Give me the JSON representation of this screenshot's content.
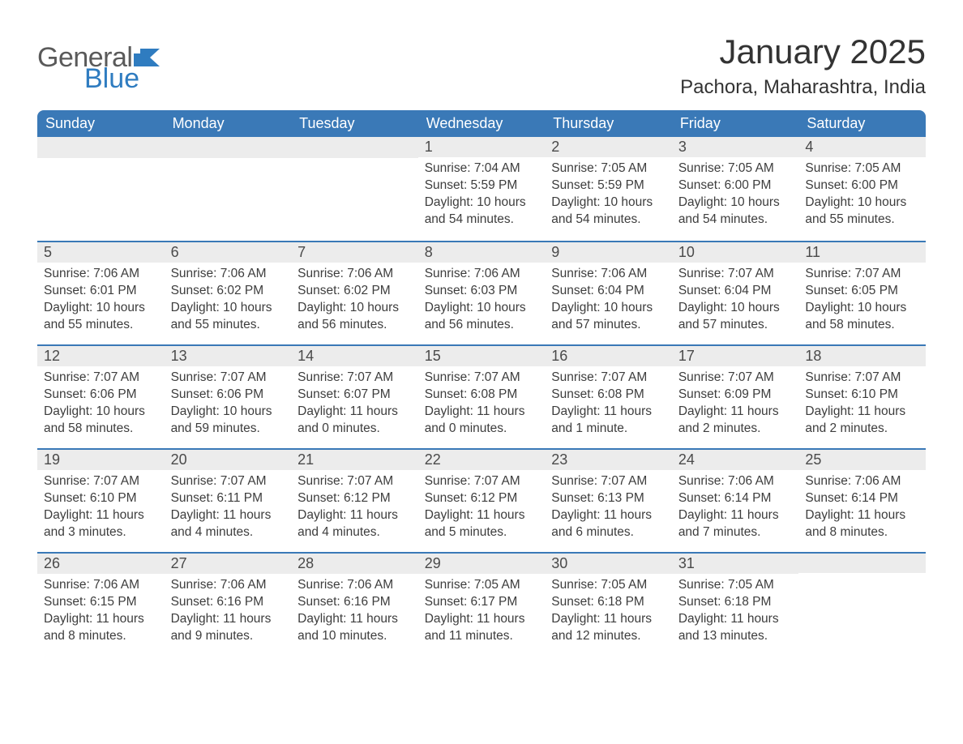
{
  "brand": {
    "word1": "General",
    "word2": "Blue",
    "color_gray": "#5a5a5a",
    "color_blue": "#2f7cc0"
  },
  "title": "January 2025",
  "location": "Pachora, Maharashtra, India",
  "theme": {
    "header_bg": "#3a79b7",
    "header_text": "#ffffff",
    "daynum_bg": "#ececec",
    "row_border": "#3a79b7",
    "body_text": "#3d3d3d",
    "page_bg": "#ffffff",
    "title_fontsize": 42,
    "location_fontsize": 24,
    "th_fontsize": 18,
    "cell_fontsize": 15.5
  },
  "weekdays": [
    "Sunday",
    "Monday",
    "Tuesday",
    "Wednesday",
    "Thursday",
    "Friday",
    "Saturday"
  ],
  "weeks": [
    [
      {
        "n": "",
        "sr": "",
        "ss": "",
        "dl": ""
      },
      {
        "n": "",
        "sr": "",
        "ss": "",
        "dl": ""
      },
      {
        "n": "",
        "sr": "",
        "ss": "",
        "dl": ""
      },
      {
        "n": "1",
        "sr": "Sunrise: 7:04 AM",
        "ss": "Sunset: 5:59 PM",
        "dl": "Daylight: 10 hours and 54 minutes."
      },
      {
        "n": "2",
        "sr": "Sunrise: 7:05 AM",
        "ss": "Sunset: 5:59 PM",
        "dl": "Daylight: 10 hours and 54 minutes."
      },
      {
        "n": "3",
        "sr": "Sunrise: 7:05 AM",
        "ss": "Sunset: 6:00 PM",
        "dl": "Daylight: 10 hours and 54 minutes."
      },
      {
        "n": "4",
        "sr": "Sunrise: 7:05 AM",
        "ss": "Sunset: 6:00 PM",
        "dl": "Daylight: 10 hours and 55 minutes."
      }
    ],
    [
      {
        "n": "5",
        "sr": "Sunrise: 7:06 AM",
        "ss": "Sunset: 6:01 PM",
        "dl": "Daylight: 10 hours and 55 minutes."
      },
      {
        "n": "6",
        "sr": "Sunrise: 7:06 AM",
        "ss": "Sunset: 6:02 PM",
        "dl": "Daylight: 10 hours and 55 minutes."
      },
      {
        "n": "7",
        "sr": "Sunrise: 7:06 AM",
        "ss": "Sunset: 6:02 PM",
        "dl": "Daylight: 10 hours and 56 minutes."
      },
      {
        "n": "8",
        "sr": "Sunrise: 7:06 AM",
        "ss": "Sunset: 6:03 PM",
        "dl": "Daylight: 10 hours and 56 minutes."
      },
      {
        "n": "9",
        "sr": "Sunrise: 7:06 AM",
        "ss": "Sunset: 6:04 PM",
        "dl": "Daylight: 10 hours and 57 minutes."
      },
      {
        "n": "10",
        "sr": "Sunrise: 7:07 AM",
        "ss": "Sunset: 6:04 PM",
        "dl": "Daylight: 10 hours and 57 minutes."
      },
      {
        "n": "11",
        "sr": "Sunrise: 7:07 AM",
        "ss": "Sunset: 6:05 PM",
        "dl": "Daylight: 10 hours and 58 minutes."
      }
    ],
    [
      {
        "n": "12",
        "sr": "Sunrise: 7:07 AM",
        "ss": "Sunset: 6:06 PM",
        "dl": "Daylight: 10 hours and 58 minutes."
      },
      {
        "n": "13",
        "sr": "Sunrise: 7:07 AM",
        "ss": "Sunset: 6:06 PM",
        "dl": "Daylight: 10 hours and 59 minutes."
      },
      {
        "n": "14",
        "sr": "Sunrise: 7:07 AM",
        "ss": "Sunset: 6:07 PM",
        "dl": "Daylight: 11 hours and 0 minutes."
      },
      {
        "n": "15",
        "sr": "Sunrise: 7:07 AM",
        "ss": "Sunset: 6:08 PM",
        "dl": "Daylight: 11 hours and 0 minutes."
      },
      {
        "n": "16",
        "sr": "Sunrise: 7:07 AM",
        "ss": "Sunset: 6:08 PM",
        "dl": "Daylight: 11 hours and 1 minute."
      },
      {
        "n": "17",
        "sr": "Sunrise: 7:07 AM",
        "ss": "Sunset: 6:09 PM",
        "dl": "Daylight: 11 hours and 2 minutes."
      },
      {
        "n": "18",
        "sr": "Sunrise: 7:07 AM",
        "ss": "Sunset: 6:10 PM",
        "dl": "Daylight: 11 hours and 2 minutes."
      }
    ],
    [
      {
        "n": "19",
        "sr": "Sunrise: 7:07 AM",
        "ss": "Sunset: 6:10 PM",
        "dl": "Daylight: 11 hours and 3 minutes."
      },
      {
        "n": "20",
        "sr": "Sunrise: 7:07 AM",
        "ss": "Sunset: 6:11 PM",
        "dl": "Daylight: 11 hours and 4 minutes."
      },
      {
        "n": "21",
        "sr": "Sunrise: 7:07 AM",
        "ss": "Sunset: 6:12 PM",
        "dl": "Daylight: 11 hours and 4 minutes."
      },
      {
        "n": "22",
        "sr": "Sunrise: 7:07 AM",
        "ss": "Sunset: 6:12 PM",
        "dl": "Daylight: 11 hours and 5 minutes."
      },
      {
        "n": "23",
        "sr": "Sunrise: 7:07 AM",
        "ss": "Sunset: 6:13 PM",
        "dl": "Daylight: 11 hours and 6 minutes."
      },
      {
        "n": "24",
        "sr": "Sunrise: 7:06 AM",
        "ss": "Sunset: 6:14 PM",
        "dl": "Daylight: 11 hours and 7 minutes."
      },
      {
        "n": "25",
        "sr": "Sunrise: 7:06 AM",
        "ss": "Sunset: 6:14 PM",
        "dl": "Daylight: 11 hours and 8 minutes."
      }
    ],
    [
      {
        "n": "26",
        "sr": "Sunrise: 7:06 AM",
        "ss": "Sunset: 6:15 PM",
        "dl": "Daylight: 11 hours and 8 minutes."
      },
      {
        "n": "27",
        "sr": "Sunrise: 7:06 AM",
        "ss": "Sunset: 6:16 PM",
        "dl": "Daylight: 11 hours and 9 minutes."
      },
      {
        "n": "28",
        "sr": "Sunrise: 7:06 AM",
        "ss": "Sunset: 6:16 PM",
        "dl": "Daylight: 11 hours and 10 minutes."
      },
      {
        "n": "29",
        "sr": "Sunrise: 7:05 AM",
        "ss": "Sunset: 6:17 PM",
        "dl": "Daylight: 11 hours and 11 minutes."
      },
      {
        "n": "30",
        "sr": "Sunrise: 7:05 AM",
        "ss": "Sunset: 6:18 PM",
        "dl": "Daylight: 11 hours and 12 minutes."
      },
      {
        "n": "31",
        "sr": "Sunrise: 7:05 AM",
        "ss": "Sunset: 6:18 PM",
        "dl": "Daylight: 11 hours and 13 minutes."
      },
      {
        "n": "",
        "sr": "",
        "ss": "",
        "dl": ""
      }
    ]
  ]
}
